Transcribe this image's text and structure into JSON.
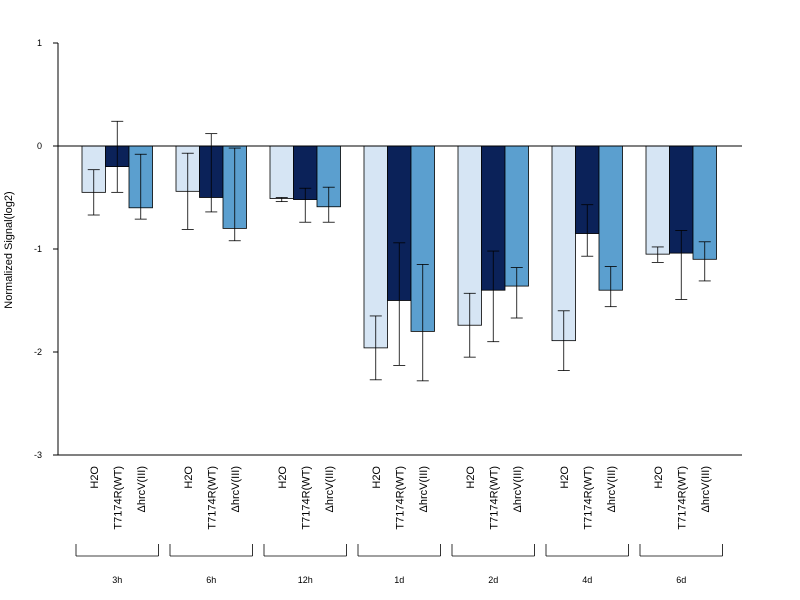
{
  "chart_data": {
    "type": "bar",
    "ylabel": "Normalized Signal(log2)",
    "ylim": [
      -3,
      1
    ],
    "yticks": [
      1,
      0,
      -1,
      -2,
      -3
    ],
    "colors": [
      "#d6e5f4",
      "#0b2259",
      "#5b9fcf"
    ],
    "series_labels": [
      "H2O",
      "T7174R(WT)",
      "ΔhrcV(III)"
    ],
    "groups": [
      {
        "name": "3h",
        "values": [
          -0.45,
          -0.2,
          -0.6
        ],
        "err_low": [
          -0.67,
          -0.45,
          -0.71
        ],
        "err_high": [
          -0.23,
          0.24,
          -0.08
        ]
      },
      {
        "name": "6h",
        "values": [
          -0.44,
          -0.5,
          -0.8
        ],
        "err_low": [
          -0.81,
          -0.64,
          -0.92
        ],
        "err_high": [
          -0.07,
          0.12,
          -0.02
        ]
      },
      {
        "name": "12h",
        "values": [
          -0.51,
          -0.52,
          -0.59
        ],
        "err_low": [
          -0.54,
          -0.74,
          -0.74
        ],
        "err_high": [
          -0.5,
          -0.41,
          -0.4
        ]
      },
      {
        "name": "1d",
        "values": [
          -1.96,
          -1.5,
          -1.8
        ],
        "err_low": [
          -2.27,
          -2.13,
          -2.28
        ],
        "err_high": [
          -1.65,
          -0.94,
          -1.15
        ]
      },
      {
        "name": "2d",
        "values": [
          -1.74,
          -1.4,
          -1.36
        ],
        "err_low": [
          -2.05,
          -1.9,
          -1.67
        ],
        "err_high": [
          -1.43,
          -1.02,
          -1.18
        ]
      },
      {
        "name": "4d",
        "values": [
          -1.89,
          -0.85,
          -1.4
        ],
        "err_low": [
          -2.18,
          -1.07,
          -1.56
        ],
        "err_high": [
          -1.6,
          -0.57,
          -1.17
        ]
      },
      {
        "name": "6d",
        "values": [
          -1.05,
          -1.04,
          -1.1
        ],
        "err_low": [
          -1.13,
          -1.49,
          -1.31
        ],
        "err_high": [
          -0.98,
          -0.82,
          -0.93
        ]
      }
    ]
  }
}
